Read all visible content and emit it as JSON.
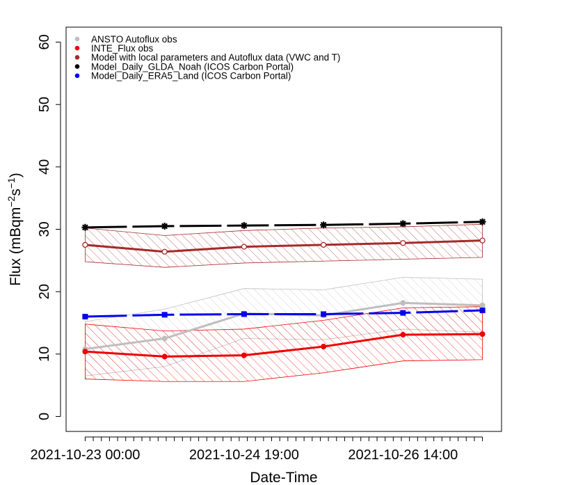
{
  "chart_data": {
    "type": "line",
    "title": "",
    "xlabel": "Date-Time",
    "ylabel": "Flux (mBqm^-2s^-1)",
    "ylabel_parts": {
      "main": "Flux (mBqm",
      "sup1": "−2",
      "mid": "s",
      "sup2": "−1",
      "end": ")"
    },
    "ylim": [
      0,
      60
    ],
    "yticks": [
      0,
      10,
      20,
      30,
      40,
      50,
      60
    ],
    "xlim": [
      -0.24,
      5.24
    ],
    "x": [
      0,
      1,
      2,
      3,
      4,
      5
    ],
    "x_tick_labels": [
      {
        "x": 0,
        "label": "2021-10-23 00:00"
      },
      {
        "x": 2,
        "label": "2021-10-24 19:00"
      },
      {
        "x": 4,
        "label": "2021-10-26 14:00"
      }
    ],
    "x_minor_ticks": 50,
    "grid": false,
    "legend_position": "top-left",
    "series": [
      {
        "name": "ANSTO Autoflux obs",
        "color": "#bebebe",
        "marker": "circle",
        "line_width": 3,
        "values": [
          10.8,
          12.5,
          16.5,
          16.2,
          18.2,
          17.8
        ],
        "band": {
          "lower": [
            6.5,
            8.0,
            12.5,
            12.3,
            14.0,
            13.5
          ],
          "upper": [
            15.2,
            17.2,
            20.5,
            20.3,
            22.3,
            22.0
          ],
          "hatch": "#bebebe"
        }
      },
      {
        "name": "INTE_Flux obs",
        "color": "#ee0000",
        "marker": "circle",
        "line_width": 3,
        "values": [
          10.4,
          9.6,
          9.8,
          11.2,
          13.1,
          13.2
        ],
        "band": {
          "lower": [
            6.0,
            5.6,
            5.6,
            7.0,
            8.9,
            9.1
          ],
          "upper": [
            14.8,
            13.7,
            14.0,
            15.4,
            17.4,
            17.6
          ],
          "hatch": "#ee0000"
        }
      },
      {
        "name": "Model with local parameters and Autoflux data (VWC and T)",
        "color": "#a52a2a",
        "marker": "circle-open",
        "line_width": 3,
        "values": [
          27.5,
          26.4,
          27.2,
          27.5,
          27.8,
          28.2
        ],
        "band": {
          "lower": [
            24.8,
            23.9,
            24.6,
            24.9,
            25.2,
            25.5
          ],
          "upper": [
            30.2,
            29.0,
            29.8,
            30.2,
            30.4,
            30.8
          ],
          "hatch": "#a52a2a"
        }
      },
      {
        "name": "Model_Daily_GLDA_Noah (ICOS Carbon Portal)",
        "color": "#000000",
        "marker": "star",
        "line_width": 3,
        "dashed": true,
        "values": [
          30.3,
          30.5,
          30.6,
          30.7,
          30.9,
          31.2
        ]
      },
      {
        "name": "Model_Daily_ERA5_Land (ICOS Carbon Portal)",
        "color": "#0000ee",
        "marker": "square",
        "line_width": 3,
        "dashed": true,
        "values": [
          16.0,
          16.3,
          16.4,
          16.4,
          16.6,
          17.0
        ]
      }
    ]
  }
}
